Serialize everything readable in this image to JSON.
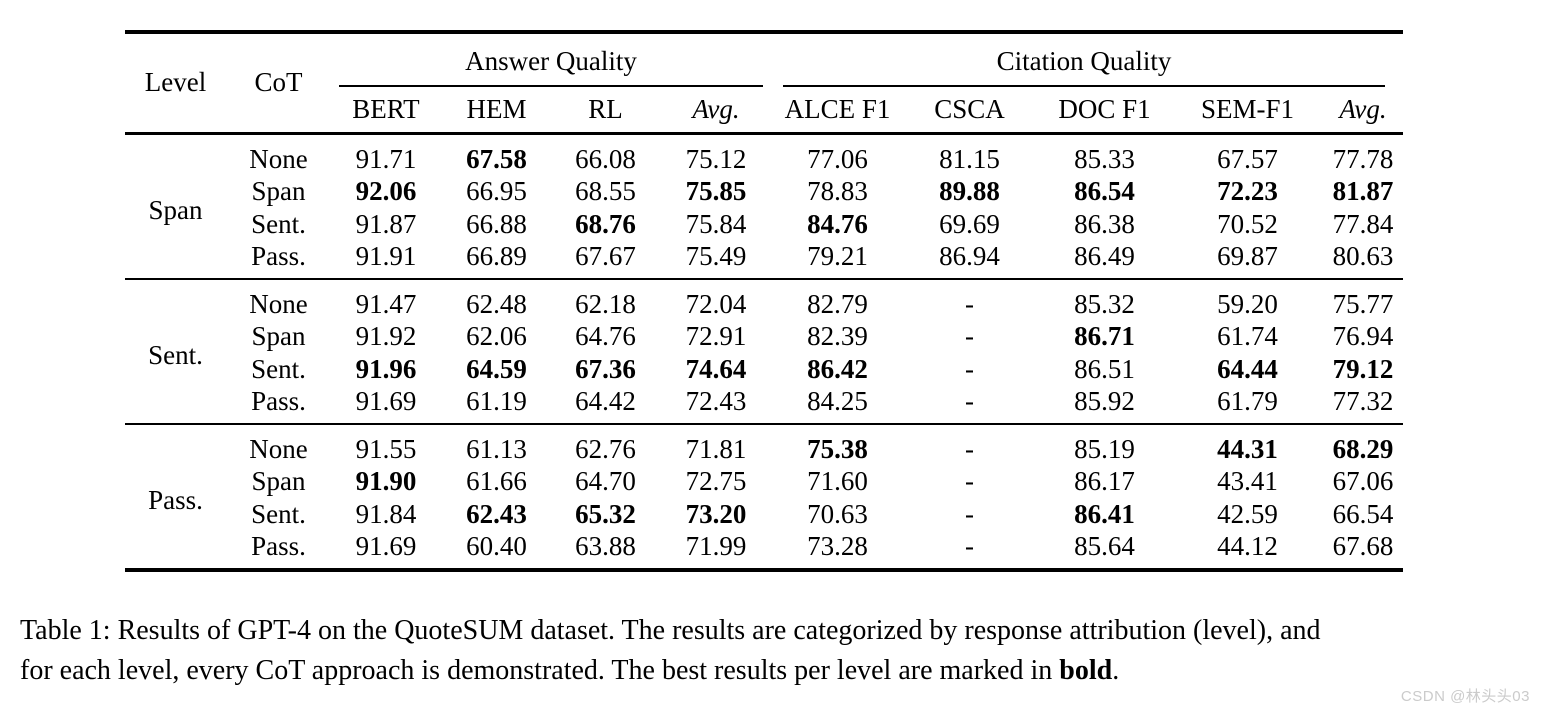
{
  "table": {
    "header": {
      "level": "Level",
      "cot": "CoT",
      "answer_quality": "Answer Quality",
      "citation_quality": "Citation Quality",
      "answer_cols": [
        "BERT",
        "HEM",
        "RL",
        "Avg."
      ],
      "citation_cols": [
        "ALCE F1",
        "CSCA",
        "DOC F1",
        "SEM-F1",
        "Avg."
      ]
    },
    "groups": [
      {
        "level": "Span",
        "rows": [
          {
            "cot": "None",
            "values": [
              "91.71",
              "67.58",
              "66.08",
              "75.12",
              "77.06",
              "81.15",
              "85.33",
              "67.57",
              "77.78"
            ],
            "bold": [
              0,
              1,
              0,
              0,
              0,
              0,
              0,
              0,
              0
            ]
          },
          {
            "cot": "Span",
            "values": [
              "92.06",
              "66.95",
              "68.55",
              "75.85",
              "78.83",
              "89.88",
              "86.54",
              "72.23",
              "81.87"
            ],
            "bold": [
              1,
              0,
              0,
              1,
              0,
              1,
              1,
              1,
              1
            ]
          },
          {
            "cot": "Sent.",
            "values": [
              "91.87",
              "66.88",
              "68.76",
              "75.84",
              "84.76",
              "69.69",
              "86.38",
              "70.52",
              "77.84"
            ],
            "bold": [
              0,
              0,
              1,
              0,
              1,
              0,
              0,
              0,
              0
            ]
          },
          {
            "cot": "Pass.",
            "values": [
              "91.91",
              "66.89",
              "67.67",
              "75.49",
              "79.21",
              "86.94",
              "86.49",
              "69.87",
              "80.63"
            ],
            "bold": [
              0,
              0,
              0,
              0,
              0,
              0,
              0,
              0,
              0
            ]
          }
        ]
      },
      {
        "level": "Sent.",
        "rows": [
          {
            "cot": "None",
            "values": [
              "91.47",
              "62.48",
              "62.18",
              "72.04",
              "82.79",
              "-",
              "85.32",
              "59.20",
              "75.77"
            ],
            "bold": [
              0,
              0,
              0,
              0,
              0,
              0,
              0,
              0,
              0
            ]
          },
          {
            "cot": "Span",
            "values": [
              "91.92",
              "62.06",
              "64.76",
              "72.91",
              "82.39",
              "-",
              "86.71",
              "61.74",
              "76.94"
            ],
            "bold": [
              0,
              0,
              0,
              0,
              0,
              0,
              1,
              0,
              0
            ]
          },
          {
            "cot": "Sent.",
            "values": [
              "91.96",
              "64.59",
              "67.36",
              "74.64",
              "86.42",
              "-",
              "86.51",
              "64.44",
              "79.12"
            ],
            "bold": [
              1,
              1,
              1,
              1,
              1,
              0,
              0,
              1,
              1
            ]
          },
          {
            "cot": "Pass.",
            "values": [
              "91.69",
              "61.19",
              "64.42",
              "72.43",
              "84.25",
              "-",
              "85.92",
              "61.79",
              "77.32"
            ],
            "bold": [
              0,
              0,
              0,
              0,
              0,
              0,
              0,
              0,
              0
            ]
          }
        ]
      },
      {
        "level": "Pass.",
        "rows": [
          {
            "cot": "None",
            "values": [
              "91.55",
              "61.13",
              "62.76",
              "71.81",
              "75.38",
              "-",
              "85.19",
              "44.31",
              "68.29"
            ],
            "bold": [
              0,
              0,
              0,
              0,
              1,
              0,
              0,
              1,
              1
            ]
          },
          {
            "cot": "Span",
            "values": [
              "91.90",
              "61.66",
              "64.70",
              "72.75",
              "71.60",
              "-",
              "86.17",
              "43.41",
              "67.06"
            ],
            "bold": [
              1,
              0,
              0,
              0,
              0,
              0,
              0,
              0,
              0
            ]
          },
          {
            "cot": "Sent.",
            "values": [
              "91.84",
              "62.43",
              "65.32",
              "73.20",
              "70.63",
              "-",
              "86.41",
              "42.59",
              "66.54"
            ],
            "bold": [
              0,
              1,
              1,
              1,
              0,
              0,
              1,
              0,
              0
            ]
          },
          {
            "cot": "Pass.",
            "values": [
              "91.69",
              "60.40",
              "63.88",
              "71.99",
              "73.28",
              "-",
              "85.64",
              "44.12",
              "67.68"
            ],
            "bold": [
              0,
              0,
              0,
              0,
              0,
              0,
              0,
              0,
              0
            ]
          }
        ]
      }
    ]
  },
  "caption": {
    "line1": "Table 1: Results of GPT-4 on the QuoteSUM dataset. The results are categorized by response attribution (level), and",
    "line2_prefix": "for each level, every CoT approach is demonstrated. The best results per level are marked in ",
    "line2_bold_word": "bold",
    "line2_suffix": "."
  },
  "watermark": "CSDN @林头头03"
}
